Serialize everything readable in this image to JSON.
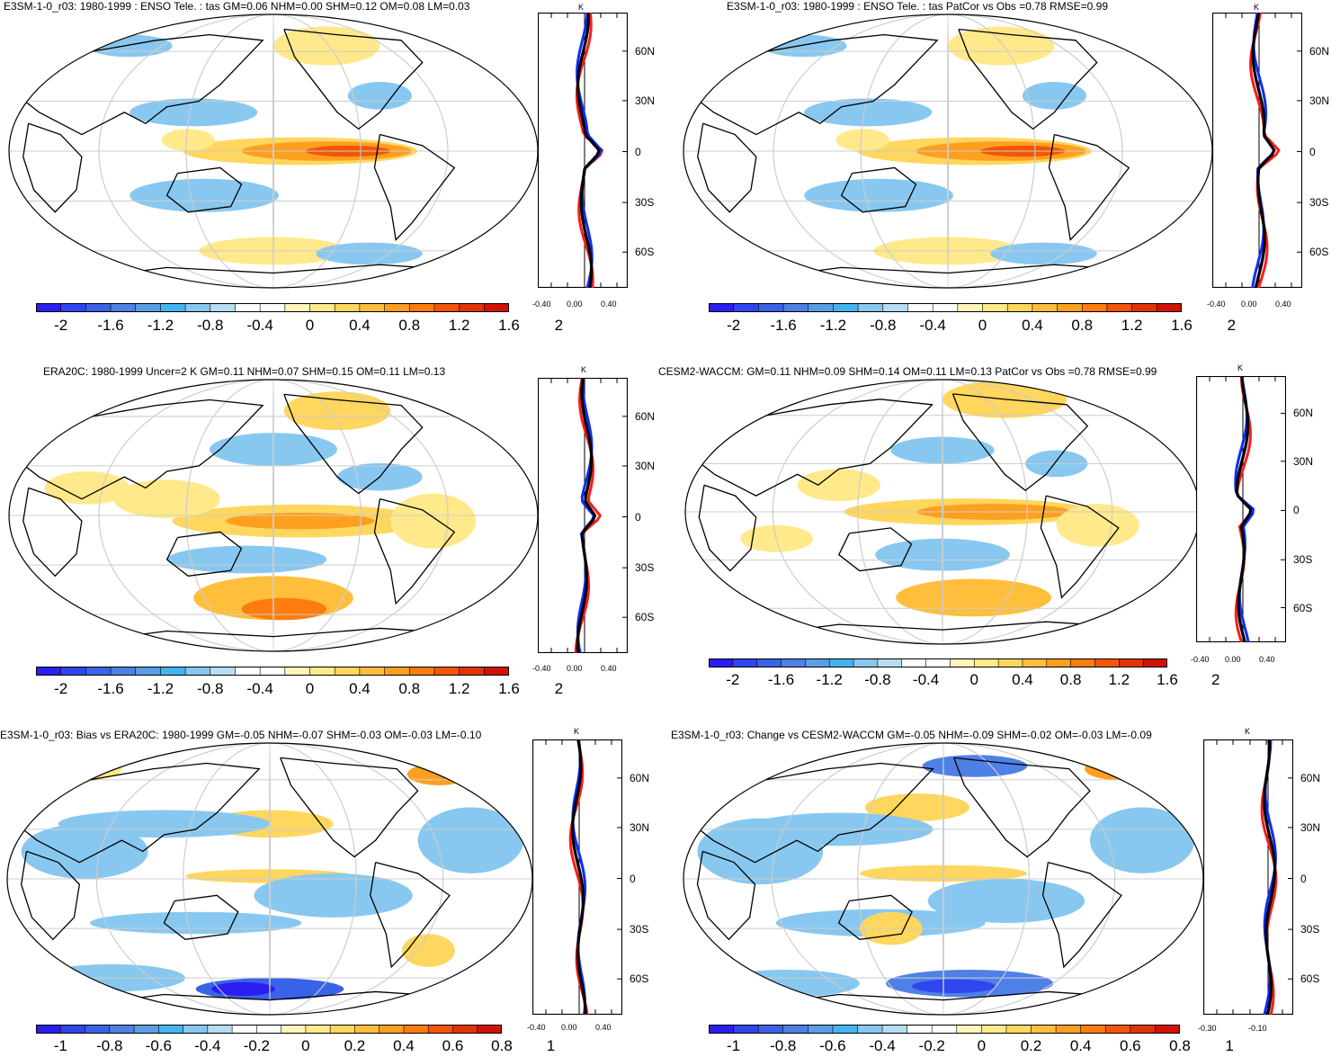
{
  "colors": {
    "model": "#0b2cff",
    "obs": "#ff1a1a",
    "mean": "#000000",
    "palette": [
      "#2b1ef0",
      "#2f46ee",
      "#3a63e8",
      "#4f80e6",
      "#5a9fe6",
      "#44b4ef",
      "#88c8f0",
      "#b7ddf3",
      "#ffffff",
      "#ffffff",
      "#fff5b8",
      "#ffe98a",
      "#ffd65e",
      "#ffbf3c",
      "#ff9f1f",
      "#ff7c0e",
      "#f25606",
      "#e33305",
      "#d11204"
    ]
  },
  "panels": [
    {
      "id": "e3sm-enso",
      "title": "E3SM-1-0_r03: 1980-1999 : ENSO Tele. : tas GM=0.06 NHM=0.00 SHM=0.12 OM=0.08 LM=0.03",
      "colorbar_labels": [
        "-2",
        "-1.6",
        "-1.2",
        "-0.8",
        "-0.4",
        "0",
        "0.4",
        "0.8",
        "1.2",
        "1.6",
        "2"
      ],
      "profile_x_labels": [
        "-0.40",
        "0.00",
        "0.40"
      ],
      "profile_unit": "K",
      "lat_labels": [
        "60N",
        "30N",
        "0",
        "30S",
        "60S"
      ]
    },
    {
      "id": "e3sm-patcor",
      "title": "E3SM-1-0_r03: 1980-1999 : ENSO Tele. : tas PatCor vs Obs =0.78 RMSE=0.99",
      "colorbar_labels": [
        "-2",
        "-1.6",
        "-1.2",
        "-0.8",
        "-0.4",
        "0",
        "0.4",
        "0.8",
        "1.2",
        "1.6",
        "2"
      ],
      "profile_x_labels": [
        "-0.40",
        "0.00",
        "0.40"
      ],
      "profile_unit": "K",
      "lat_labels": [
        "60N",
        "30N",
        "0",
        "30S",
        "60S"
      ]
    },
    {
      "id": "era20c",
      "title": "ERA20C: 1980-1999 Uncer=2 K GM=0.11 NHM=0.07 SHM=0.15 OM=0.11 LM=0.13",
      "colorbar_labels": [
        "-2",
        "-1.6",
        "-1.2",
        "-0.8",
        "-0.4",
        "0",
        "0.4",
        "0.8",
        "1.2",
        "1.6",
        "2"
      ],
      "profile_x_labels": [
        "-0.40",
        "0.00",
        "0.40"
      ],
      "profile_unit": "K",
      "lat_labels": [
        "60N",
        "30N",
        "0",
        "30S",
        "60S"
      ]
    },
    {
      "id": "cesm2",
      "title": "CESM2-WACCM: GM=0.11 NHM=0.09 SHM=0.14 OM=0.11 LM=0.13 PatCor vs Obs =0.78 RMSE=0.99",
      "colorbar_labels": [
        "-2",
        "-1.6",
        "-1.2",
        "-0.8",
        "-0.4",
        "0",
        "0.4",
        "0.8",
        "1.2",
        "1.6",
        "2"
      ],
      "profile_x_labels": [
        "-0.40",
        "0.00",
        "0.40"
      ],
      "profile_unit": "K",
      "lat_labels": [
        "60N",
        "30N",
        "0",
        "30S",
        "60S"
      ]
    },
    {
      "id": "bias",
      "title": "E3SM-1-0_r03: Bias vs ERA20C: 1980-1999 GM=-0.05 NHM=-0.07 SHM=-0.03 OM=-0.03 LM=-0.10",
      "colorbar_labels": [
        "-1",
        "-0.8",
        "-0.6",
        "-0.4",
        "-0.2",
        "0",
        "0.2",
        "0.4",
        "0.6",
        "0.8",
        "1"
      ],
      "profile_x_labels": [
        "-0.40",
        "0.00",
        "0.40"
      ],
      "profile_unit": "K",
      "lat_labels": [
        "60N",
        "30N",
        "0",
        "30S",
        "60S"
      ]
    },
    {
      "id": "change",
      "title": "E3SM-1-0_r03: Change vs CESM2-WACCM GM=-0.05 NHM=-0.09 SHM=-0.02 OM=-0.03 LM=-0.09",
      "colorbar_labels": [
        "-1",
        "-0.8",
        "-0.6",
        "-0.4",
        "-0.2",
        "0",
        "0.2",
        "0.4",
        "0.6",
        "0.8",
        "1"
      ],
      "profile_x_labels": [
        "-0.30",
        "-0.10"
      ],
      "profile_unit": "K",
      "lat_labels": [
        "60N",
        "30N",
        "0",
        "30S",
        "60S"
      ]
    }
  ]
}
